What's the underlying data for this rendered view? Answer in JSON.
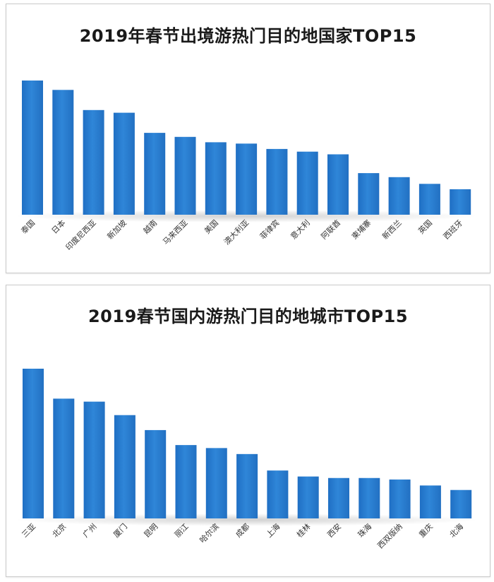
{
  "chart_data": [
    {
      "type": "bar",
      "title": "2019年春节出境游热门目的地国家TOP15",
      "categories": [
        "泰国",
        "日本",
        "印度尼西亚",
        "新加坡",
        "越南",
        "马来西亚",
        "美国",
        "澳大利亚",
        "菲律宾",
        "意大利",
        "阿联酋",
        "柬埔寨",
        "新西兰",
        "英国",
        "西班牙"
      ],
      "values": [
        100,
        93,
        78,
        76,
        61,
        58,
        54,
        53,
        49,
        47,
        45,
        31,
        28,
        23,
        19
      ],
      "ylim": [
        0,
        100
      ],
      "grid": false,
      "legend": "none",
      "bar_color": "#2f86d8"
    },
    {
      "type": "bar",
      "title": "2019春节国内游热门目的地城市TOP15",
      "categories": [
        "三亚",
        "北京",
        "广州",
        "厦门",
        "昆明",
        "丽江",
        "哈尔滨",
        "成都",
        "上海",
        "桂林",
        "西安",
        "珠海",
        "西双版纳",
        "重庆",
        "北海"
      ],
      "values": [
        100,
        80,
        78,
        69,
        59,
        49,
        47,
        43,
        32,
        28,
        27,
        27,
        26,
        22,
        19
      ],
      "ylim": [
        0,
        100
      ],
      "grid": false,
      "legend": "none",
      "bar_color": "#2f86d8"
    }
  ]
}
